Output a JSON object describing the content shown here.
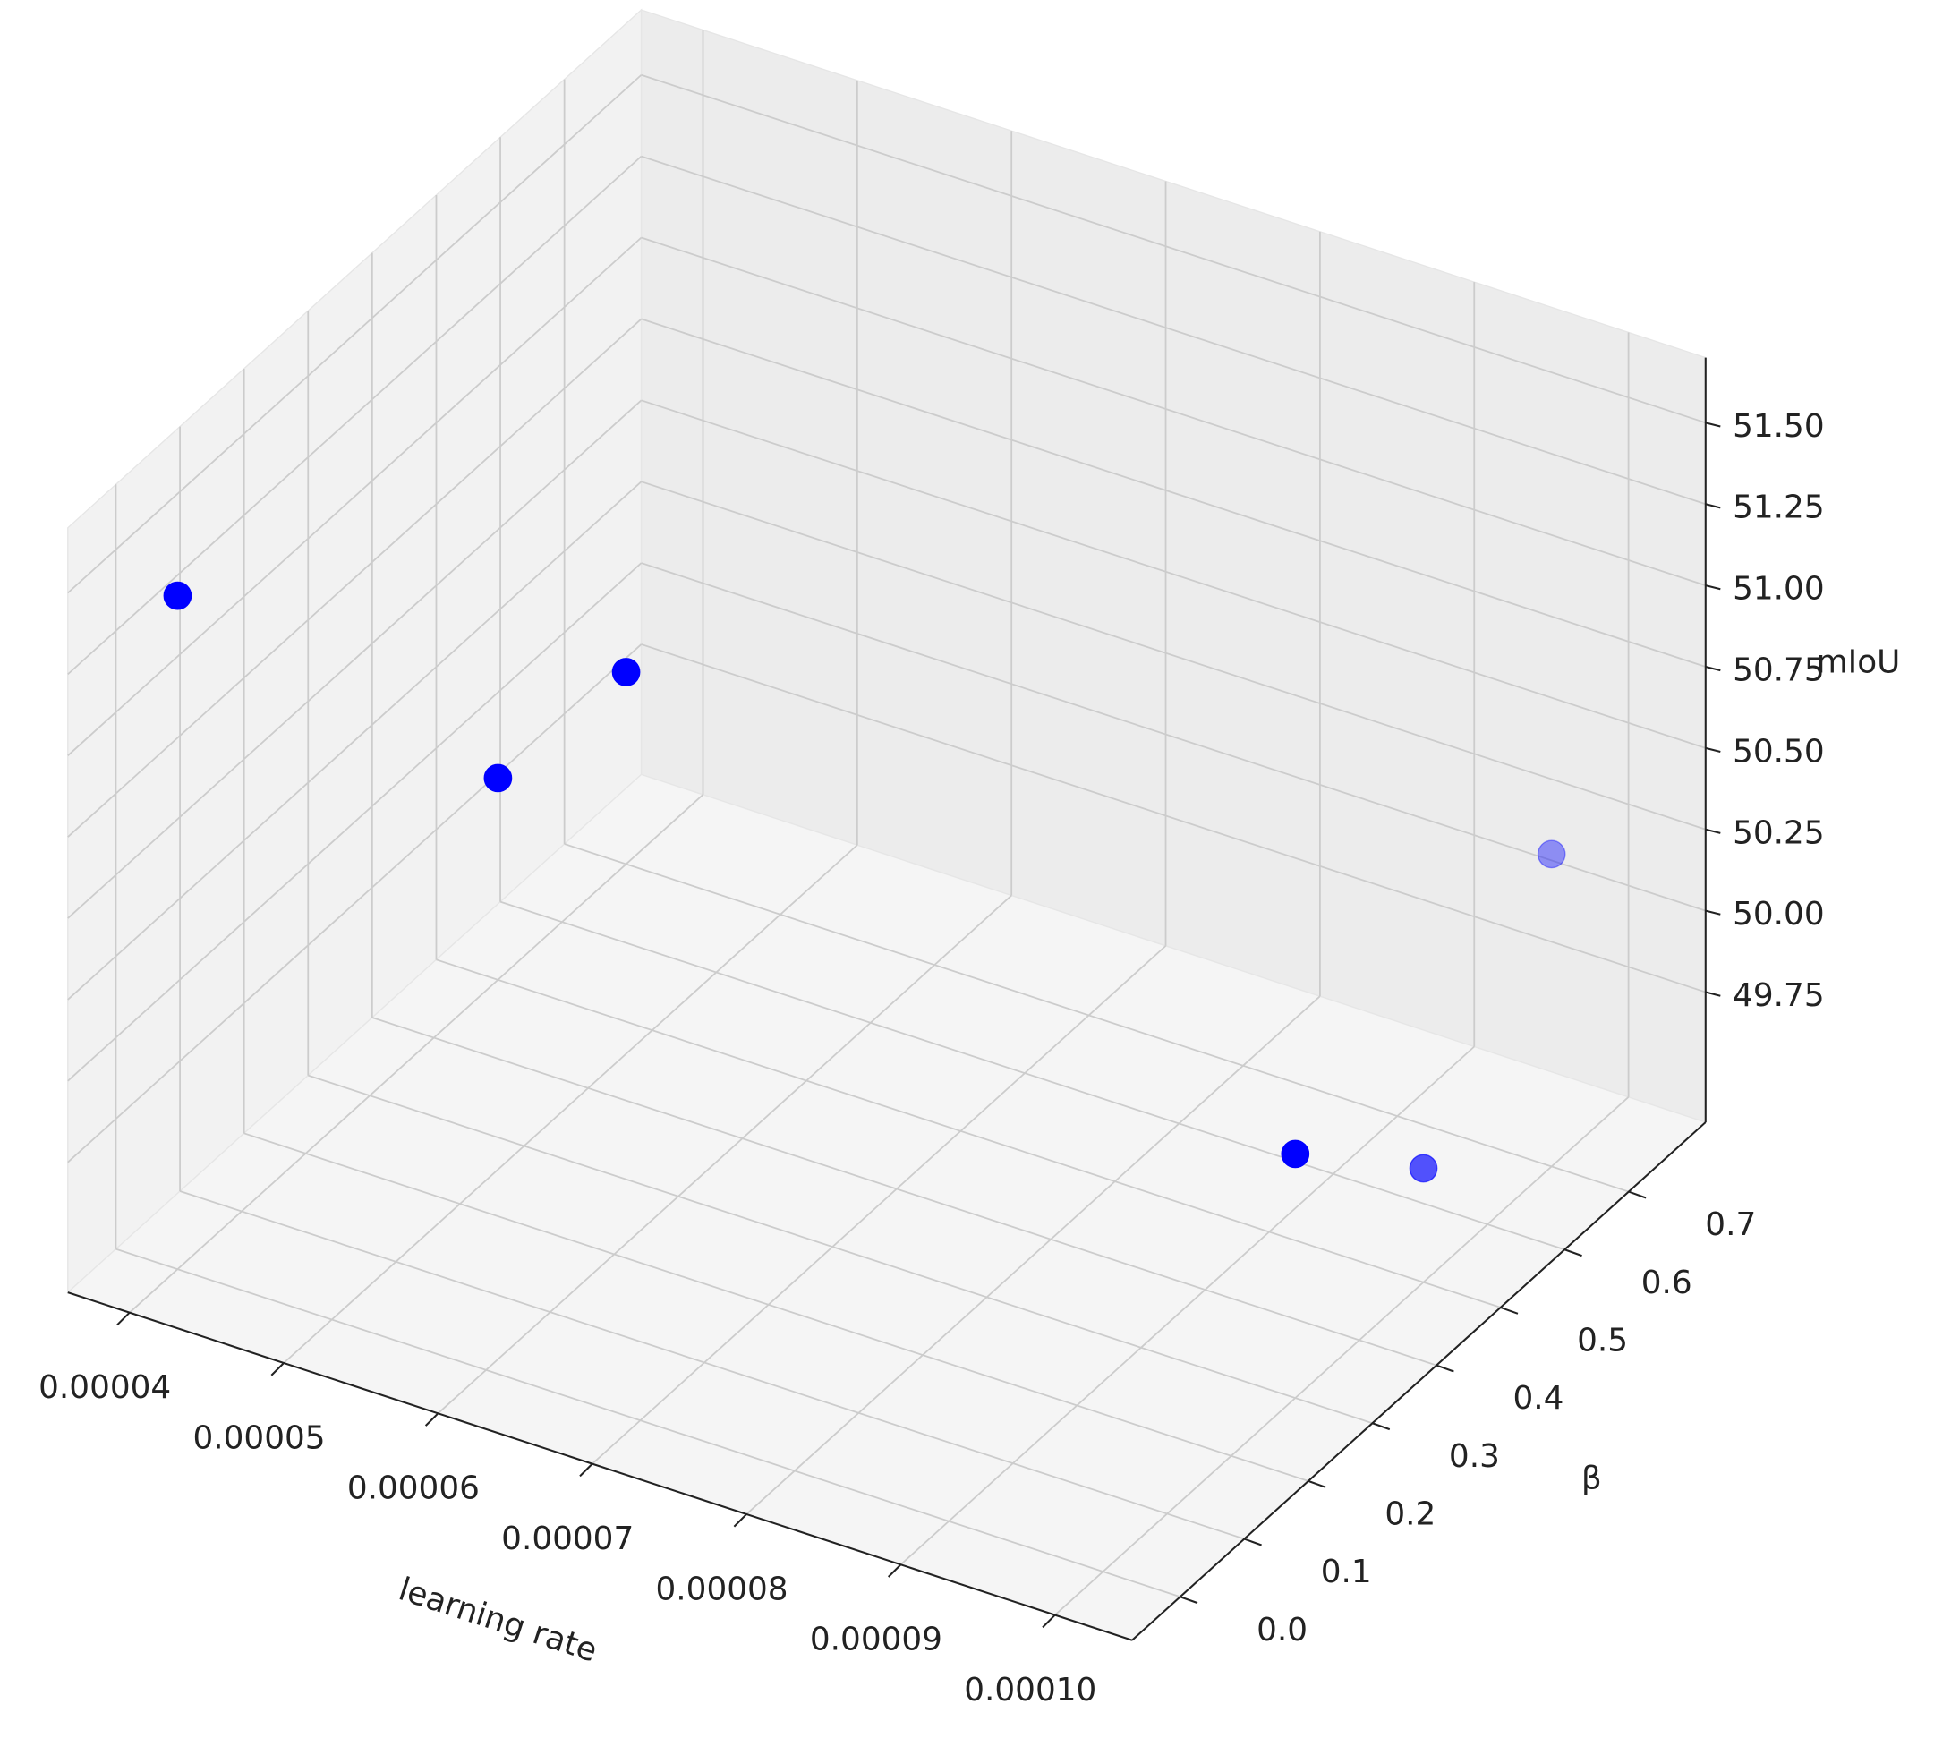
{
  "chart_data": {
    "type": "scatter3d",
    "x_label": "learning rate",
    "y_label": "β",
    "z_label": "mIoU",
    "series": [
      {
        "color": "#0000ff",
        "x": [
          4e-05,
          4e-05,
          4e-05,
          0.0001,
          0.0001,
          0.0001
        ],
        "y": [
          0.0,
          0.7,
          0.5,
          0.7,
          0.3,
          0.5
        ],
        "values": [
          51.42,
          49.94,
          49.97,
          50.31,
          50.1,
          49.7
        ]
      }
    ],
    "xlim": [
      3.6e-05,
      0.000105
    ],
    "xticks": [
      4e-05,
      5e-05,
      6e-05,
      7e-05,
      8e-05,
      9e-05,
      {
        "value": 0.0001,
        "label": "0.00010"
      }
    ],
    "ylim": [
      -0.075,
      0.82
    ],
    "yticks": [
      {
        "value": 0.0,
        "label": "0.0"
      },
      0.1,
      0.2,
      0.3,
      0.4,
      0.5,
      0.6,
      0.7
    ],
    "zlim": [
      49.35,
      51.7
    ],
    "zticks": [
      49.75,
      {
        "value": 50.0,
        "label": "50.00"
      },
      50.25,
      {
        "value": 50.5,
        "label": "50.50"
      },
      50.75,
      {
        "value": 51.0,
        "label": "51.00"
      },
      51.25,
      {
        "value": 51.5,
        "label": "51.50"
      }
    ],
    "grid": true
  }
}
